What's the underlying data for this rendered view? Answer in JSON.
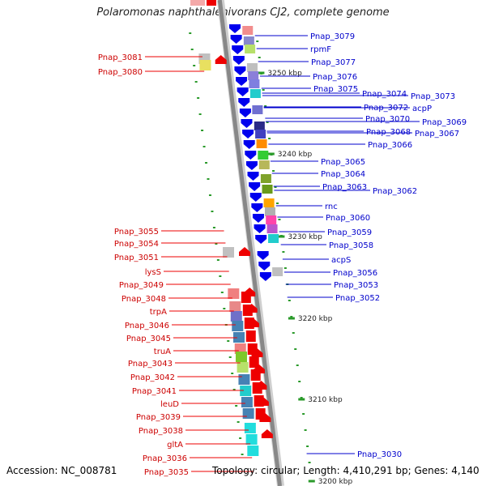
{
  "title": "Polaromonas naphthalenivorans CJ2, complete genome",
  "accession_label": "Accession: NC_008781",
  "summary_label": "Topology: circular; Length: 4,410,291 bp; Genes: 4,140",
  "colors": {
    "forward_strand": "#0000ee",
    "reverse_strand": "#ee0000",
    "backbone": "#888888",
    "tick": "#2a9a2a",
    "label_right": "#0000cc",
    "label_left": "#cc0000"
  },
  "scale_labels": [
    "3250 kbp",
    "3240 kbp",
    "3230 kbp",
    "3220 kbp",
    "3210 kbp",
    "3200 kbp"
  ],
  "right_labels": [
    "Pnap_3079",
    "rpmF",
    "Pnap_3077",
    "Pnap_3076",
    "Pnap_3075",
    "Pnap_3074",
    "Pnap_3073",
    "Pnap_3072",
    "acpP",
    "Pnap_3070",
    "Pnap_3069",
    "Pnap_3068",
    "Pnap_3067",
    "Pnap_3066",
    "Pnap_3065",
    "Pnap_3064",
    "Pnap_3063",
    "Pnap_3062",
    "rnc",
    "Pnap_3060",
    "Pnap_3059",
    "Pnap_3058",
    "acpS",
    "Pnap_3056",
    "Pnap_3053",
    "Pnap_3052",
    "Pnap_3030"
  ],
  "left_labels": [
    "Pnap_3081",
    "Pnap_3080",
    "Pnap_3055",
    "Pnap_3054",
    "Pnap_3051",
    "lysS",
    "Pnap_3049",
    "Pnap_3048",
    "trpA",
    "Pnap_3046",
    "Pnap_3045",
    "truA",
    "Pnap_3043",
    "Pnap_3042",
    "Pnap_3041",
    "leuD",
    "Pnap_3039",
    "Pnap_3038",
    "gltA",
    "Pnap_3036",
    "Pnap_3035"
  ]
}
